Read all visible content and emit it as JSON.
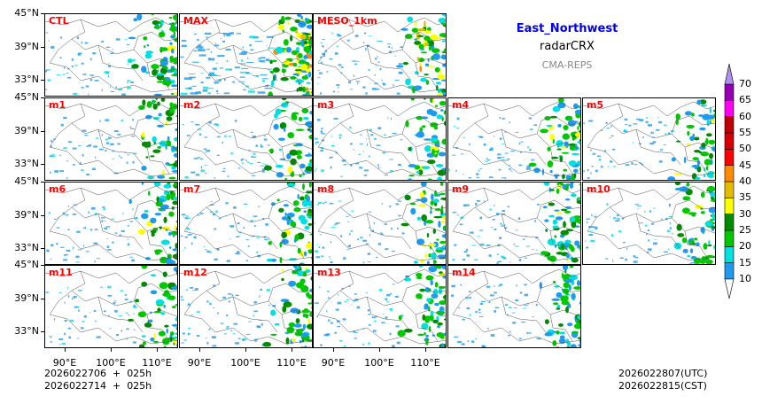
{
  "header": {
    "title": "East_Northwest",
    "variable": "radarCRX",
    "source": "CMA-REPS"
  },
  "panels": [
    {
      "label": "CTL",
      "row": 0,
      "col": 0
    },
    {
      "label": "MAX",
      "row": 0,
      "col": 1
    },
    {
      "label": "MESO_1km",
      "row": 0,
      "col": 2
    },
    {
      "label": "m1",
      "row": 1,
      "col": 0
    },
    {
      "label": "m2",
      "row": 1,
      "col": 1
    },
    {
      "label": "m3",
      "row": 1,
      "col": 2
    },
    {
      "label": "m4",
      "row": 1,
      "col": 3
    },
    {
      "label": "m5",
      "row": 1,
      "col": 4
    },
    {
      "label": "m6",
      "row": 2,
      "col": 0
    },
    {
      "label": "m7",
      "row": 2,
      "col": 1
    },
    {
      "label": "m8",
      "row": 2,
      "col": 2
    },
    {
      "label": "m9",
      "row": 2,
      "col": 3
    },
    {
      "label": "m10",
      "row": 2,
      "col": 4
    },
    {
      "label": "m11",
      "row": 3,
      "col": 0
    },
    {
      "label": "m12",
      "row": 3,
      "col": 1
    },
    {
      "label": "m13",
      "row": 3,
      "col": 2
    },
    {
      "label": "m14",
      "row": 3,
      "col": 3
    }
  ],
  "axes": {
    "lat_ticks": [
      "45°N",
      "39°N",
      "33°N"
    ],
    "lon_ticks": [
      "90°E",
      "100°E",
      "110°E"
    ]
  },
  "footer": {
    "init_line1": "2026022706  +  025h",
    "init_line2": "2026022714  +  025h",
    "valid_utc": "2026022807(UTC)",
    "valid_cst": "2026022815(CST)"
  },
  "colorbar": {
    "levels": [
      "10",
      "15",
      "20",
      "25",
      "30",
      "35",
      "40",
      "45",
      "50",
      "55",
      "60",
      "65",
      "70"
    ],
    "colors": [
      "#1e9bf0",
      "#00e0e0",
      "#00c800",
      "#008c00",
      "#ffff00",
      "#e6bc00",
      "#ff8c00",
      "#ff0000",
      "#d60000",
      "#c00000",
      "#ff00f0",
      "#9600b4"
    ],
    "over_color": "#ad90f0",
    "under_color": "#ffffff"
  }
}
